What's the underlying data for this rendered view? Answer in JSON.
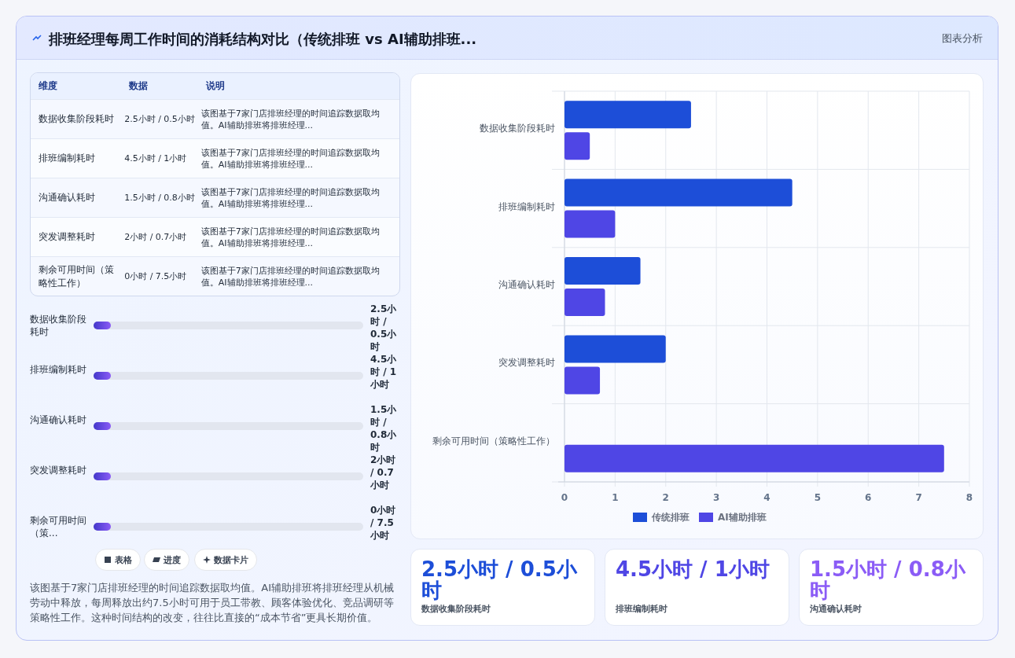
{
  "chart_data": [
    {
      "type": "other",
      "title": "排班经理每周工作时间的消耗结构对比（传统排班 vs AI辅助排班...",
      "subtitle": "图表分析",
      "annotations": [
        "维度",
        "数据",
        "说明",
        "数据收集阶段耗时",
        "2.5小时 / 0.5小时",
        "该图基于7家门店排班经理的时间追踪数据取均值。AI辅助排班将排班经理...",
        "排班编制耗时",
        "4.5小时 / 1小时",
        "该图基于7家门店排班经理的时间追踪数据取均值。AI辅助排班将排班经理...",
        "沟通确认耗时",
        "1.5小时 / 0.8小时",
        "该图基于7家门店排班经理的时间追踪数据取均值。AI辅助排班将排班经理...",
        "突发调整耗时",
        "2小时 / 0.7小时",
        "该图基于7家门店排班经理的时间追踪数据取均值。AI辅助排班将排班经理...",
        "剩余可用时间（策略性工作）",
        "0小时 / 7.5小时",
        "该图基于7家门店排班经理的时间追踪数据取均值。AI辅助排班将排班经理...",
        "数据收集阶段耗时",
        "2.5小时 / 0.5小时",
        "排班编制耗时",
        "4.5小时 / 1小时",
        "沟通确认耗时",
        "1.5小时 / 0.8小时",
        "突发调整耗时",
        "2小时 / 0.7小时",
        "剩余可用时间（策...",
        "0小时 / 7.5小时",
        "表格",
        "进度",
        "数据卡片",
        "该图基于7家门店排班经理的时间追踪数据取均值。AI辅助排班将排班经理从机械劳动中释放，每周释放出约7.5小时可用于员工带教、顾客体验优化、竞品调研等策略性工作。这种时间结构的改变，往往比直接的“成本节省”更具长期价值。"
      ]
    },
    {
      "type": "bar",
      "orientation": "horizontal",
      "categories": [
        "数据收集阶段耗时",
        "排班编制耗时",
        "沟通确认耗时",
        "突发调整耗时",
        "剩余可用时间（策略性工作）"
      ],
      "series": [
        {
          "name": "传统排班",
          "color": "#1d4ed8",
          "values": [
            2.5,
            4.5,
            1.5,
            2,
            0
          ]
        },
        {
          "name": "AI辅助排班",
          "color": "#4f46e5",
          "values": [
            0.5,
            1,
            0.8,
            0.7,
            7.5
          ]
        }
      ],
      "xlim": [
        0,
        8
      ],
      "xticks": [
        0,
        1,
        2,
        3,
        4,
        5,
        6,
        7,
        8
      ],
      "grid": true,
      "legend": "bottom"
    },
    {
      "type": "other",
      "annotations": [
        "2.5小时 / 0.5小时",
        "数据收集阶段耗时",
        "4.5小时 / 1小时",
        "排班编制耗时",
        "1.5小时 / 0.8小时",
        "沟通确认耗时"
      ]
    }
  ]
}
